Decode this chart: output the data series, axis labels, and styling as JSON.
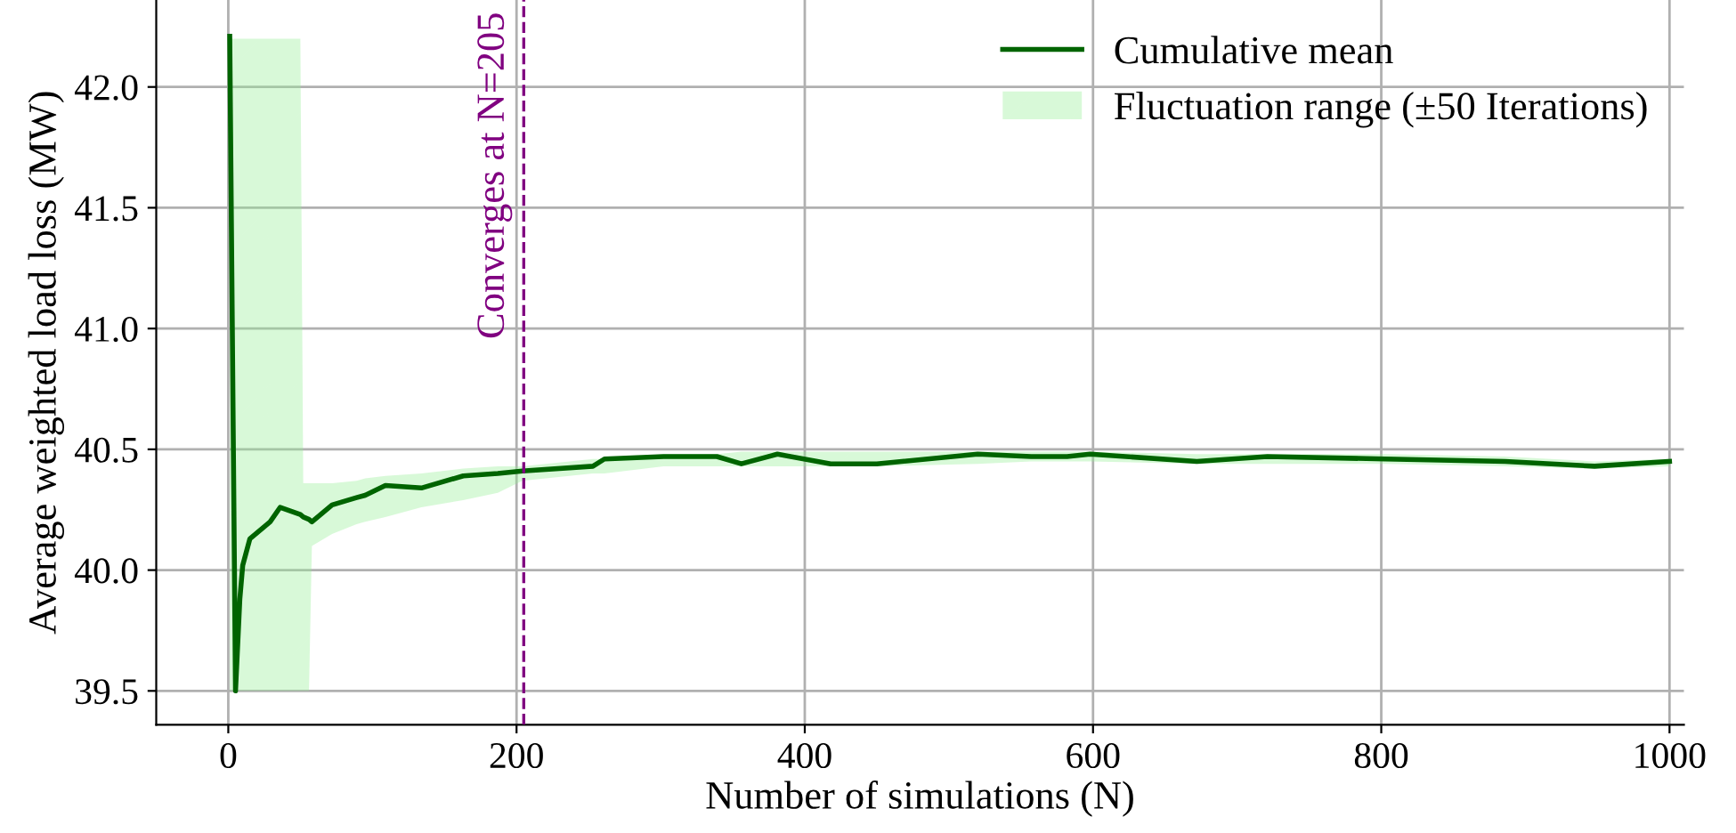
{
  "chart_data": {
    "type": "line",
    "xlabel": "Number of simulations (N)",
    "ylabel": "Average weighted load loss (MW)",
    "xlim": [
      -50,
      1010
    ],
    "ylim": [
      39.36,
      42.36
    ],
    "xticks": [
      0,
      200,
      400,
      600,
      800,
      1000
    ],
    "yticks": [
      39.5,
      {
        "value": 40,
        "label": "40.0"
      },
      40.5,
      {
        "value": 41,
        "label": "41.0"
      },
      41.5,
      {
        "value": 42,
        "label": "42.0"
      }
    ],
    "grid": true,
    "legend": "top right",
    "line_style": "solid",
    "marker": "none",
    "series": [
      {
        "name": "Cumulative mean",
        "type": "line",
        "color": "#006400",
        "x": [
          1,
          5,
          8,
          10,
          15,
          29,
          36,
          50,
          52,
          56,
          58,
          72,
          89,
          95,
          109,
          134,
          163,
          187,
          204,
          253,
          261,
          302,
          339,
          356,
          381,
          418,
          450,
          520,
          557,
          582,
          598,
          672,
          721,
          803,
          886,
          948,
          1000
        ],
        "values": [
          42.21,
          39.5,
          39.88,
          40.02,
          40.13,
          40.2,
          40.26,
          40.23,
          40.22,
          40.21,
          40.2,
          40.27,
          40.3,
          40.31,
          40.35,
          40.34,
          40.39,
          40.4,
          40.41,
          40.43,
          40.46,
          40.47,
          40.47,
          40.44,
          40.48,
          40.44,
          40.44,
          40.48,
          40.47,
          40.47,
          40.48,
          40.45,
          40.47,
          40.46,
          40.45,
          40.43,
          40.45
        ],
        "upper": [
          42.2,
          42.2,
          42.2,
          42.2,
          42.2,
          42.2,
          42.2,
          42.2,
          40.36,
          40.36,
          40.36,
          40.36,
          40.37,
          40.38,
          40.39,
          40.4,
          40.42,
          40.43,
          40.43,
          40.46,
          40.46,
          40.48,
          40.48,
          40.49,
          40.49,
          40.49,
          40.49,
          40.49,
          40.49,
          40.49,
          40.49,
          40.48,
          40.48,
          40.48,
          40.47,
          40.45,
          40.46
        ],
        "lower": [
          39.5,
          39.5,
          39.5,
          39.5,
          39.5,
          39.5,
          39.5,
          39.5,
          39.5,
          39.5,
          40.1,
          40.15,
          40.19,
          40.2,
          40.22,
          40.26,
          40.29,
          40.32,
          40.37,
          40.4,
          40.4,
          40.43,
          40.43,
          40.43,
          40.43,
          40.43,
          40.43,
          40.44,
          40.45,
          40.45,
          40.45,
          40.44,
          40.44,
          40.44,
          40.43,
          40.42,
          40.43
        ]
      },
      {
        "name": "Fluctuation range (±50 Iterations)",
        "type": "area",
        "color": "#90ee90"
      }
    ],
    "ref_lines": [
      {
        "axis": "x",
        "value": 205,
        "label": "Converges at N=205",
        "color": "#800080",
        "line_style": "dashed"
      }
    ]
  }
}
